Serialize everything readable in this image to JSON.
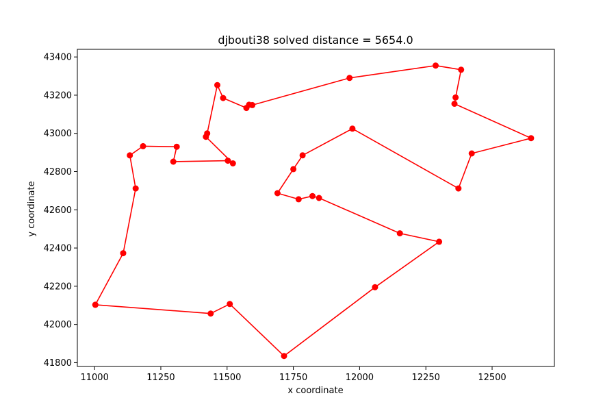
{
  "chart_data": {
    "type": "line",
    "title": "djbouti38 solved distance = 5654.0",
    "xlabel": "x coordinate",
    "ylabel": "y coordinate",
    "xlim": [
      10935,
      12735
    ],
    "ylim": [
      41780,
      43440
    ],
    "xticks": [
      11000,
      11250,
      11500,
      11750,
      12000,
      12250,
      12500
    ],
    "yticks": [
      41800,
      42000,
      42200,
      42400,
      42600,
      42800,
      43000,
      43200,
      43400
    ],
    "grid": false,
    "color": "#ff0000",
    "x": [
      11003,
      11108,
      11155,
      11133,
      11183,
      11310,
      11297,
      11503,
      11522,
      11420,
      11425,
      11463,
      11485,
      11573,
      11583,
      11595,
      11962,
      12287,
      12383,
      12362,
      12358,
      12647,
      12423,
      12373,
      11973,
      11785,
      11750,
      11690,
      11770,
      11822,
      11847,
      12152,
      12300,
      12058,
      11715,
      11510,
      11438,
      11003
    ],
    "y": [
      42103,
      42373,
      42712,
      42885,
      42933,
      42930,
      42852,
      42857,
      42843,
      42982,
      43000,
      43253,
      43185,
      43133,
      43150,
      43148,
      43290,
      43355,
      43333,
      43188,
      43155,
      42975,
      42895,
      42712,
      43025,
      42885,
      42813,
      42687,
      42655,
      42672,
      42662,
      42477,
      42433,
      42195,
      41835,
      42107,
      42057,
      42103
    ]
  }
}
